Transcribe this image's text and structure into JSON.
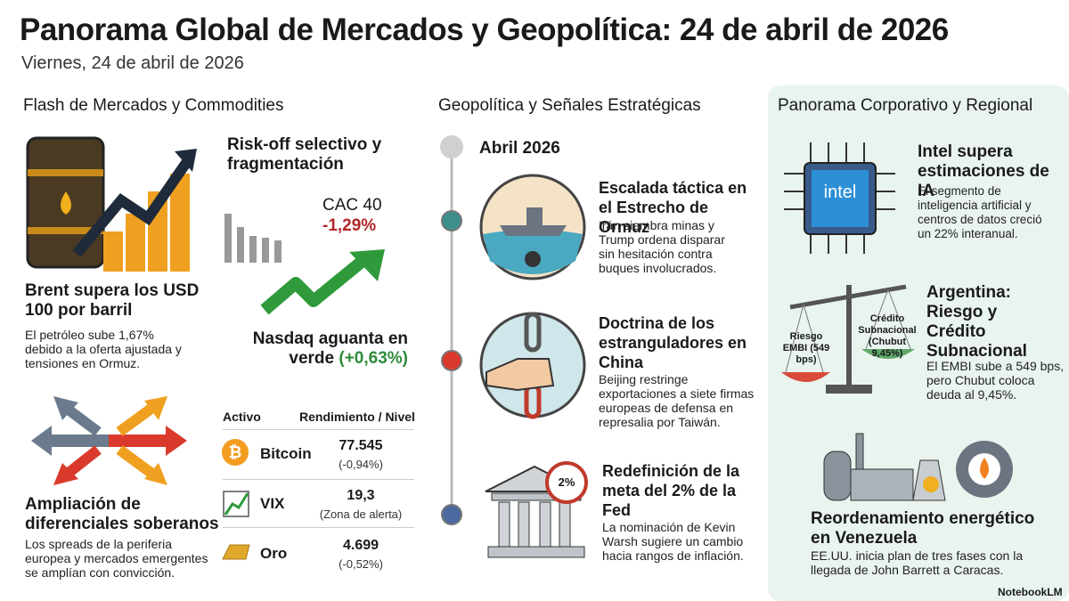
{
  "header": {
    "title": "Panorama Global de Mercados y Geopolítica: 24 de abril de 2026",
    "subtitle": "Viernes, 24 de abril de 2026"
  },
  "markets": {
    "title": "Flash de Mercados y Commodities",
    "brent": {
      "title": "Brent supera los USD 100 por barril",
      "text": "El petróleo sube 1,67% debido a la oferta ajustada y tensiones en Ormuz."
    },
    "riskoff": {
      "title": "Risk-off selectivo y fragmentación",
      "cac_label": "CAC 40",
      "cac_value": "-1,29%",
      "nasdaq": "Nasdaq aguanta en verde",
      "nasdaq_value": "(+0,63%)"
    },
    "spreads": {
      "title": "Ampliación de diferenciales soberanos",
      "text": "Los spreads de la periferia europea y mercados emergentes se amplían con convicción."
    },
    "table": {
      "headers": [
        "Activo",
        "Rendimiento / Nivel"
      ],
      "rows": [
        [
          "Bitcoin",
          "77.545",
          "(-0,94%)"
        ],
        [
          "VIX",
          "19,3",
          "(Zona de alerta)"
        ],
        [
          "Oro",
          "4.699",
          "(-0,52%)"
        ]
      ]
    }
  },
  "geopolitics": {
    "title": "Geopolítica y Señales Estratégicas",
    "date": "Abril 2026",
    "events": [
      {
        "title": "Escalada táctica en el Estrecho de Ormuz",
        "text": "Irán siembra minas y Trump ordena disparar sin hesitación contra buques involucrados."
      },
      {
        "title": "Doctrina de los estranguladores en China",
        "text": "Beijing restringe exportaciones a siete firmas europeas de defensa en represalia por Taiwán."
      },
      {
        "title": "Redefinición de la meta del 2% de la Fed",
        "text": "La nominación de Kevin Warsh sugiere un cambio hacia rangos de inflación.",
        "badge": "2%"
      }
    ]
  },
  "corporate": {
    "title": "Panorama Corporativo y Regional",
    "intel": {
      "logo": "intel",
      "title": "Intel supera estimaciones de IA",
      "text": "El segmento de inteligencia artificial y centros de datos creció un 22% interanual."
    },
    "argentina": {
      "title": "Argentina: Riesgo y Crédito Subnacional",
      "text": "El EMBI sube a 549 bps, pero Chubut coloca deuda al 9,45%.",
      "left_label": "Riesgo EMBI (549 bps)",
      "right_label": "Crédito Subnacional (Chubut 9,45%)"
    },
    "venezuela": {
      "title": "Reordenamiento energético en Venezuela",
      "text": "EE.UU. inicia plan de tres fases con la llegada de John Barrett a Caracas."
    }
  },
  "footer": "NotebookLM"
}
